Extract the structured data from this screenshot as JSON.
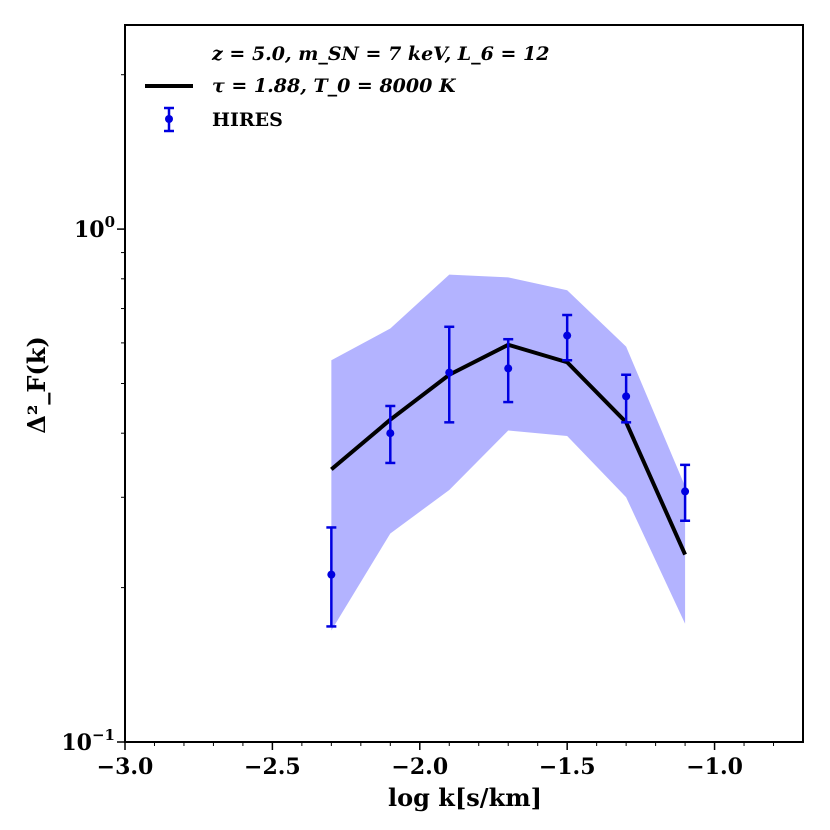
{
  "chart_data": {
    "type": "line",
    "title": "",
    "xlabel": "log k[s/km]",
    "ylabel": "Δ²_F(k)",
    "xlim": [
      -3.0,
      -0.7
    ],
    "ylim": [
      0.1,
      2.5
    ],
    "yscale": "log",
    "grid": false,
    "x_ticks": [
      -3.0,
      -2.5,
      -2.0,
      -1.5,
      -1.0
    ],
    "x_tick_labels": [
      "−3.0",
      "−2.5",
      "−2.0",
      "−1.5",
      "−1.0"
    ],
    "y_ticks": [
      {
        "value": 1.0,
        "base": "10",
        "exp": "0"
      },
      {
        "value": 0.1,
        "base": "10",
        "exp": "−1"
      }
    ],
    "legend": {
      "placement": "top-left",
      "header": "z = 5.0, m_SN = 7 keV, L_6 = 12",
      "entries": [
        {
          "label": "τ = 1.88, T_0 = 8000 K",
          "kind": "line"
        },
        {
          "label": "HIRES",
          "kind": "errorbar"
        }
      ]
    },
    "band": {
      "name": "model range",
      "x": [
        -2.3,
        -2.1,
        -1.9,
        -1.7,
        -1.5,
        -1.3,
        -1.1
      ],
      "lower": [
        0.165,
        0.255,
        0.31,
        0.405,
        0.395,
        0.3,
        0.17
      ],
      "upper": [
        0.555,
        0.64,
        0.815,
        0.805,
        0.76,
        0.59,
        0.315
      ],
      "color": "#b3b3ff"
    },
    "series": [
      {
        "name": "τ = 1.88, T_0 = 8000 K",
        "kind": "line",
        "color": "#000000",
        "x": [
          -2.3,
          -2.1,
          -1.9,
          -1.7,
          -1.5,
          -1.3,
          -1.1
        ],
        "values": [
          0.34,
          0.425,
          0.52,
          0.595,
          0.55,
          0.42,
          0.232
        ]
      },
      {
        "name": "HIRES",
        "kind": "errorbar",
        "color": "#0000e0",
        "x": [
          -2.3,
          -2.1,
          -1.9,
          -1.7,
          -1.5,
          -1.3,
          -1.1
        ],
        "values": [
          0.212,
          0.4,
          0.525,
          0.535,
          0.62,
          0.472,
          0.308
        ],
        "err_low": [
          0.168,
          0.35,
          0.42,
          0.46,
          0.555,
          0.42,
          0.27
        ],
        "err_high": [
          0.262,
          0.452,
          0.645,
          0.61,
          0.68,
          0.52,
          0.347
        ]
      }
    ]
  }
}
